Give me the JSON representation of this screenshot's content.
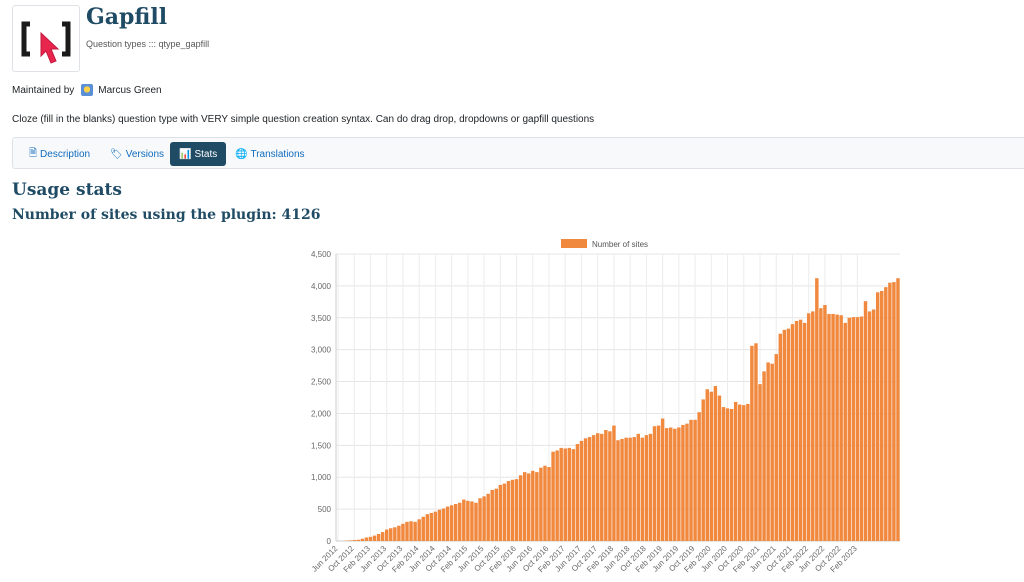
{
  "plugin": {
    "title": "Gapfill",
    "path": "Question types ::: qtype_gapfill",
    "maintained_by_label": "Maintained by",
    "maintainer": "Marcus Green",
    "description": "Cloze (fill in the blanks) question type with VERY simple question creation syntax. Can do drag drop, dropdowns or gapfill questions"
  },
  "tabs": [
    {
      "label": "Description",
      "icon": "file-icon",
      "active": false
    },
    {
      "label": "Versions",
      "icon": "tags-icon",
      "active": false
    },
    {
      "label": "Stats",
      "icon": "bar-chart-icon",
      "active": true
    },
    {
      "label": "Translations",
      "icon": "globe-icon",
      "active": false
    }
  ],
  "stats": {
    "heading": "Usage stats",
    "sites_heading": "Number of sites using the plugin: 4126"
  },
  "colors": {
    "brand": "#1f4b65",
    "link": "#0f6cbf",
    "bar": "#f0883e",
    "logo_red": "#e8254d"
  },
  "chart_data": {
    "type": "bar",
    "legend": [
      "Number of sites"
    ],
    "legend_position": "top",
    "grid": true,
    "ylim": [
      0,
      4500
    ],
    "yticks": [
      "0",
      "500",
      "1,000",
      "1,500",
      "2,000",
      "2,500",
      "3,000",
      "3,500",
      "4,000",
      "4,500"
    ],
    "xtick_labels": [
      "Jun 2012",
      "Oct 2012",
      "Feb 2013",
      "Jun 2013",
      "Oct 2013",
      "Feb 2014",
      "Jun 2014",
      "Oct 2014",
      "Feb 2015",
      "Jun 2015",
      "Oct 2015",
      "Feb 2016",
      "Jun 2016",
      "Oct 2016",
      "Feb 2017",
      "Jun 2017",
      "Oct 2017",
      "Feb 2018",
      "Jun 2018",
      "Oct 2018",
      "Feb 2019",
      "Jun 2019",
      "Oct 2019",
      "Feb 2020",
      "Jun 2020",
      "Oct 2020",
      "Feb 2021",
      "Jun 2021",
      "Oct 2021",
      "Feb 2022",
      "Jun 2022",
      "Oct 2022",
      "Feb 2023"
    ],
    "series": [
      {
        "name": "Number of sites",
        "values": [
          0,
          0,
          5,
          10,
          15,
          20,
          35,
          55,
          65,
          85,
          110,
          140,
          180,
          200,
          215,
          240,
          270,
          300,
          310,
          300,
          340,
          380,
          420,
          440,
          460,
          490,
          510,
          540,
          560,
          580,
          600,
          650,
          630,
          620,
          600,
          670,
          700,
          740,
          800,
          820,
          880,
          900,
          940,
          960,
          970,
          1030,
          1080,
          1060,
          1100,
          1080,
          1150,
          1180,
          1160,
          1400,
          1420,
          1460,
          1450,
          1460,
          1440,
          1520,
          1570,
          1610,
          1630,
          1660,
          1690,
          1680,
          1740,
          1720,
          1810,
          1580,
          1600,
          1620,
          1620,
          1630,
          1680,
          1620,
          1660,
          1680,
          1800,
          1810,
          1920,
          1770,
          1780,
          1760,
          1780,
          1820,
          1840,
          1900,
          1900,
          2020,
          2220,
          2380,
          2340,
          2430,
          2280,
          2100,
          2080,
          2070,
          2180,
          2140,
          2130,
          2150,
          3060,
          3100,
          2460,
          2660,
          2800,
          2780,
          2930,
          3250,
          3310,
          3330,
          3400,
          3450,
          3470,
          3420,
          3570,
          3600,
          4120,
          3650,
          3700,
          3560,
          3560,
          3550,
          3540,
          3420,
          3500,
          3510,
          3510,
          3520,
          3760,
          3600,
          3630,
          3900,
          3920,
          3980,
          4050,
          4060,
          4120
        ]
      }
    ]
  }
}
